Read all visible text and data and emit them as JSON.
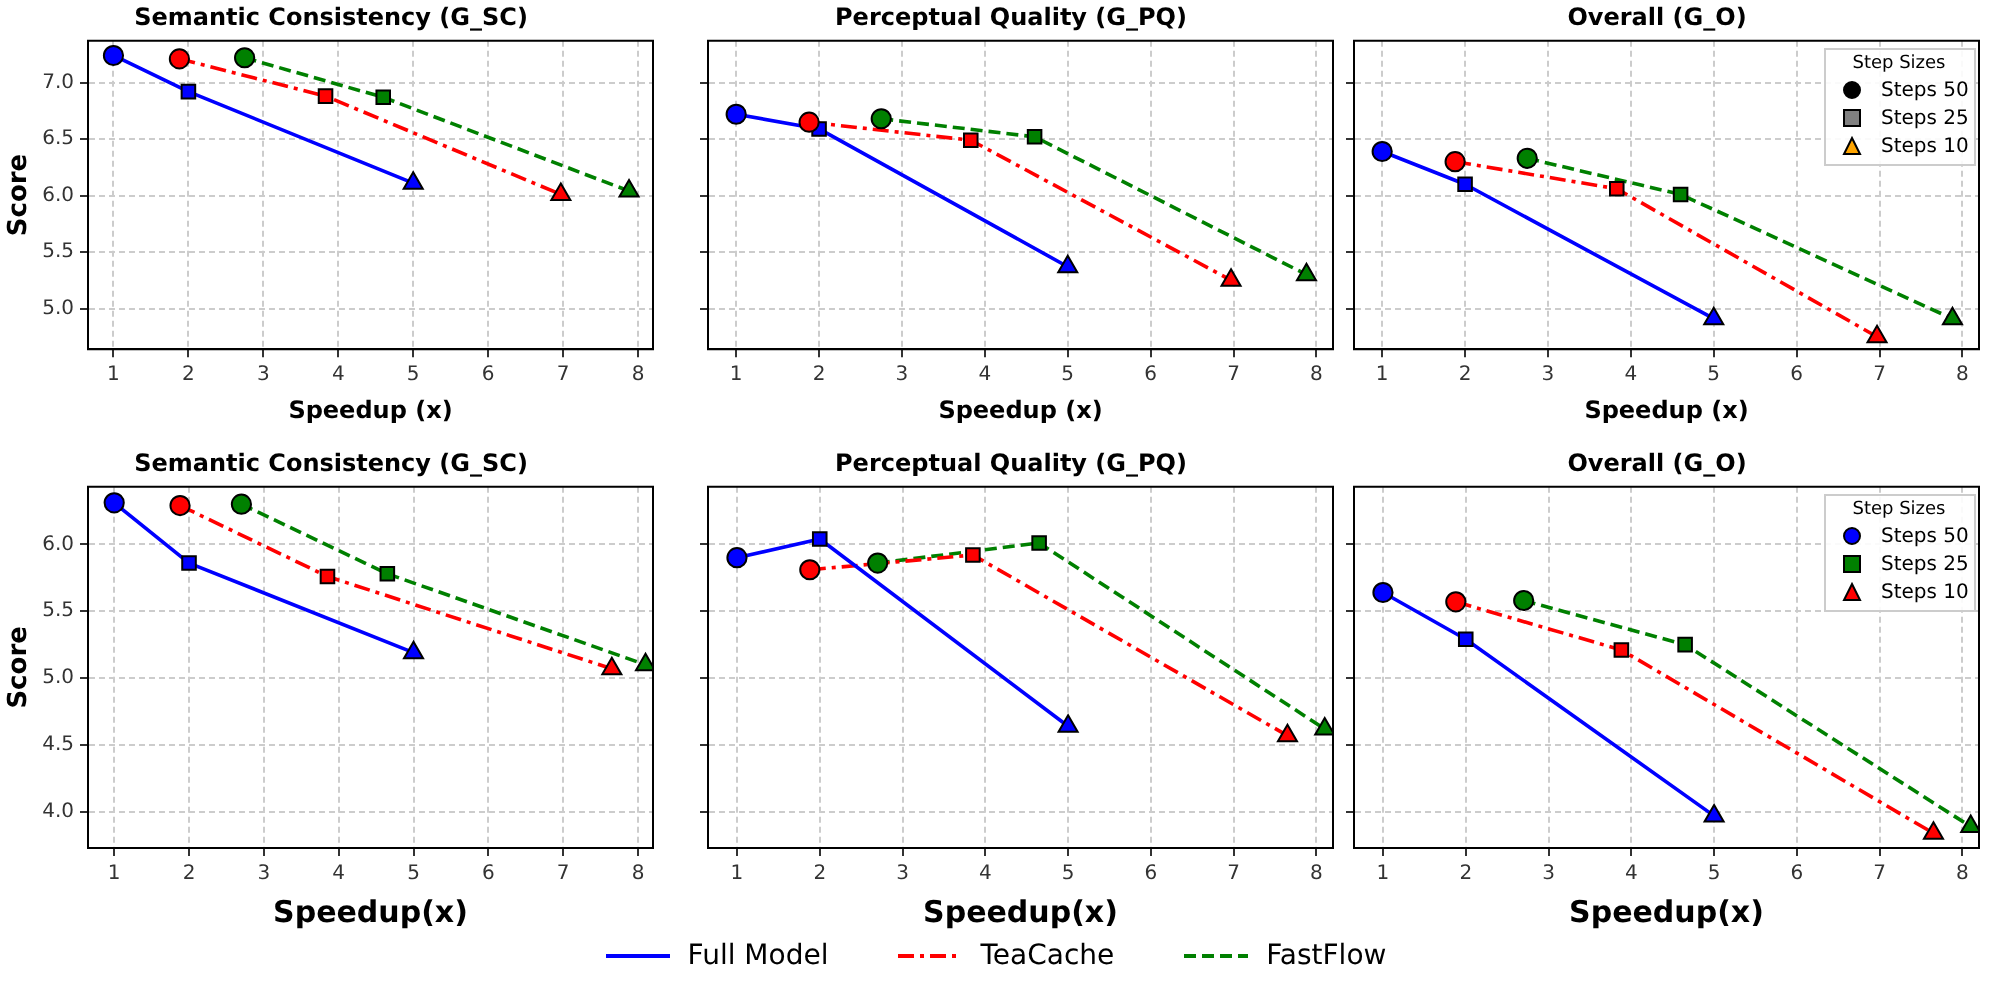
{
  "chart_data": [
    {
      "type": "line",
      "title": "Semantic Consistency (G_SC)",
      "xlabel": "Speedup (x)",
      "ylabel": "Score",
      "xlim": [
        0.66,
        8.2
      ],
      "ylim": [
        4.64,
        7.37
      ],
      "xticks": [
        1,
        2,
        3,
        4,
        5,
        6,
        7,
        8
      ],
      "yticks": [
        {
          "value": 5,
          "label": "5.0"
        },
        5.5,
        {
          "value": 6,
          "label": "6.0"
        },
        6.5,
        {
          "value": 7,
          "label": "7.0"
        }
      ],
      "grid": true,
      "legend": "bottom",
      "series": [
        {
          "name": "Full Model",
          "color": "#0000ff",
          "line_style": "solid",
          "marker": "none",
          "x": [
            1,
            2,
            5
          ],
          "values": [
            7.24,
            6.92,
            6.11
          ]
        },
        {
          "name": "TeaCache",
          "color": "#ff0000",
          "line_style": "dashdot",
          "marker": "none",
          "x": [
            1.88,
            3.83,
            6.97
          ],
          "values": [
            7.21,
            6.88,
            6.01
          ]
        },
        {
          "name": "FastFlow",
          "color": "#008000",
          "line_style": "dashed",
          "marker": "none",
          "x": [
            2.75,
            4.6,
            7.88
          ],
          "values": [
            7.22,
            6.87,
            6.04
          ]
        },
        {
          "type": "scatter",
          "color": "#000000",
          "marker": "circle",
          "x": [
            1,
            1.88,
            2.75
          ],
          "values": [
            7.24,
            7.21,
            7.22
          ],
          "colors": [
            "#0000ff",
            "#ff0000",
            "#008000"
          ]
        },
        {
          "type": "scatter",
          "color": "#808080",
          "marker": "square",
          "x": [
            2,
            3.83,
            4.6
          ],
          "values": [
            6.92,
            6.88,
            6.87
          ],
          "colors": [
            "#0000ff",
            "#ff0000",
            "#008000"
          ]
        },
        {
          "type": "scatter",
          "color": "#ffa500",
          "marker": "triangle",
          "x": [
            5,
            6.97,
            7.88
          ],
          "values": [
            6.11,
            6.01,
            6.04
          ],
          "colors": [
            "#0000ff",
            "#ff0000",
            "#008000"
          ]
        }
      ]
    },
    {
      "type": "line",
      "title": "Perceptual Quality (G_PQ)",
      "xlabel": "Speedup (x)",
      "xlim": [
        0.66,
        8.2
      ],
      "ylim": [
        4.64,
        7.37
      ],
      "xticks": [
        1,
        2,
        3,
        4,
        5,
        6,
        7,
        8
      ],
      "yticks": [
        5,
        5.5,
        6,
        6.5,
        7
      ],
      "grid": true,
      "tick_labels": "x",
      "series": [
        {
          "color": "#0000ff",
          "line_style": "solid",
          "marker": "none",
          "x": [
            1,
            2,
            5
          ],
          "values": [
            6.72,
            6.59,
            5.37
          ]
        },
        {
          "color": "#ff0000",
          "line_style": "dashdot",
          "marker": "none",
          "x": [
            1.88,
            3.83,
            6.97
          ],
          "values": [
            6.65,
            6.49,
            5.25
          ]
        },
        {
          "color": "#008000",
          "line_style": "dashed",
          "marker": "none",
          "x": [
            2.75,
            4.6,
            7.88
          ],
          "values": [
            6.68,
            6.52,
            5.3
          ]
        },
        {
          "type": "scatter",
          "color": "#000000",
          "marker": "circle",
          "x": [
            1,
            1.88,
            2.75
          ],
          "values": [
            6.72,
            6.65,
            6.68
          ],
          "colors": [
            "#0000ff",
            "#ff0000",
            "#008000"
          ]
        },
        {
          "type": "scatter",
          "color": "#808080",
          "marker": "square",
          "x": [
            2,
            3.83,
            4.6
          ],
          "values": [
            6.59,
            6.49,
            6.52
          ],
          "colors": [
            "#0000ff",
            "#ff0000",
            "#008000"
          ]
        },
        {
          "type": "scatter",
          "color": "#ffa500",
          "marker": "triangle",
          "x": [
            5,
            6.97,
            7.88
          ],
          "values": [
            5.37,
            5.25,
            5.3
          ],
          "colors": [
            "#0000ff",
            "#ff0000",
            "#008000"
          ]
        }
      ]
    },
    {
      "type": "line",
      "title": "Overall (G_O)",
      "xlabel": "Speedup (x)",
      "xlim": [
        0.66,
        8.2
      ],
      "ylim": [
        4.64,
        7.37
      ],
      "xticks": [
        1,
        2,
        3,
        4,
        5,
        6,
        7,
        8
      ],
      "yticks": [
        5,
        5.5,
        6,
        6.5,
        7
      ],
      "grid": true,
      "tick_labels": "x",
      "legend": "top right",
      "legend_title": "Step Sizes",
      "annotations": [
        "Steps 50",
        "Steps 25",
        "Steps 10"
      ],
      "series": [
        {
          "color": "#0000ff",
          "line_style": "solid",
          "marker": "none",
          "x": [
            1,
            2,
            5
          ],
          "values": [
            6.39,
            6.1,
            4.91
          ]
        },
        {
          "color": "#ff0000",
          "line_style": "dashdot",
          "marker": "none",
          "x": [
            1.88,
            3.83,
            6.97
          ],
          "values": [
            6.3,
            6.06,
            4.75
          ]
        },
        {
          "color": "#008000",
          "line_style": "dashed",
          "marker": "none",
          "x": [
            2.75,
            4.6,
            7.88
          ],
          "values": [
            6.33,
            6.01,
            4.91
          ]
        },
        {
          "type": "scatter",
          "color": "#000000",
          "marker": "circle",
          "x": [
            1,
            1.88,
            2.75
          ],
          "values": [
            6.39,
            6.3,
            6.33
          ],
          "colors": [
            "#0000ff",
            "#ff0000",
            "#008000"
          ]
        },
        {
          "type": "scatter",
          "color": "#808080",
          "marker": "square",
          "x": [
            2,
            3.83,
            4.6
          ],
          "values": [
            6.1,
            6.06,
            6.01
          ],
          "colors": [
            "#0000ff",
            "#ff0000",
            "#008000"
          ]
        },
        {
          "type": "scatter",
          "color": "#ffa500",
          "marker": "triangle",
          "x": [
            5,
            6.97,
            7.88
          ],
          "values": [
            4.91,
            4.75,
            4.91
          ],
          "colors": [
            "#0000ff",
            "#ff0000",
            "#008000"
          ]
        }
      ]
    },
    {
      "type": "line",
      "title": "Semantic Consistency (G_SC)",
      "xlabel": "Speedup(x)",
      "ylabel": "Score",
      "xlim": [
        0.65,
        8.2
      ],
      "ylim": [
        3.73,
        6.43
      ],
      "xticks": [
        1,
        2,
        3,
        4,
        5,
        6,
        7,
        8
      ],
      "yticks": [
        {
          "value": 4,
          "label": "4.0"
        },
        4.5,
        {
          "value": 5,
          "label": "5.0"
        },
        5.5,
        {
          "value": 6,
          "label": "6.0"
        }
      ],
      "grid": true,
      "series": [
        {
          "color": "#0000ff",
          "line_style": "solid",
          "marker": "none",
          "x": [
            1,
            2,
            5
          ],
          "values": [
            6.31,
            5.86,
            5.19
          ]
        },
        {
          "color": "#ff0000",
          "line_style": "dashdot",
          "marker": "none",
          "x": [
            1.88,
            3.85,
            7.65
          ],
          "values": [
            6.29,
            5.76,
            5.07
          ]
        },
        {
          "color": "#008000",
          "line_style": "dashed",
          "marker": "none",
          "x": [
            2.7,
            4.65,
            8.1
          ],
          "values": [
            6.3,
            5.78,
            5.1
          ]
        },
        {
          "type": "scatter",
          "color": "#0000ff",
          "marker": "circle",
          "x": [
            1,
            1.88,
            2.7
          ],
          "values": [
            6.31,
            6.29,
            6.3
          ],
          "colors": [
            "#0000ff",
            "#ff0000",
            "#008000"
          ]
        },
        {
          "type": "scatter",
          "color": "#008000",
          "marker": "square",
          "x": [
            2,
            3.85,
            4.65
          ],
          "values": [
            5.86,
            5.76,
            5.78
          ],
          "colors": [
            "#0000ff",
            "#ff0000",
            "#008000"
          ]
        },
        {
          "type": "scatter",
          "color": "#ff0000",
          "marker": "triangle",
          "x": [
            5,
            7.65,
            8.1
          ],
          "values": [
            5.19,
            5.07,
            5.1
          ],
          "colors": [
            "#0000ff",
            "#ff0000",
            "#008000"
          ]
        }
      ]
    },
    {
      "type": "line",
      "title": "Perceptual Quality (G_PQ)",
      "xlabel": "Speedup(x)",
      "xlim": [
        0.65,
        8.2
      ],
      "ylim": [
        3.73,
        6.43
      ],
      "xticks": [
        1,
        2,
        3,
        4,
        5,
        6,
        7,
        8
      ],
      "yticks": [
        4,
        4.5,
        5,
        5.5,
        6
      ],
      "grid": true,
      "tick_labels": "x",
      "series": [
        {
          "color": "#0000ff",
          "line_style": "solid",
          "marker": "none",
          "x": [
            1,
            2,
            5
          ],
          "values": [
            5.9,
            6.04,
            4.64
          ]
        },
        {
          "color": "#ff0000",
          "line_style": "dashdot",
          "marker": "none",
          "x": [
            1.88,
            3.85,
            7.65
          ],
          "values": [
            5.81,
            5.92,
            4.57
          ]
        },
        {
          "color": "#008000",
          "line_style": "dashed",
          "marker": "none",
          "x": [
            2.7,
            4.65,
            8.1
          ],
          "values": [
            5.86,
            6.01,
            4.62
          ]
        },
        {
          "type": "scatter",
          "color": "#0000ff",
          "marker": "circle",
          "x": [
            1,
            1.88,
            2.7
          ],
          "values": [
            5.9,
            5.81,
            5.86
          ],
          "colors": [
            "#0000ff",
            "#ff0000",
            "#008000"
          ]
        },
        {
          "type": "scatter",
          "color": "#008000",
          "marker": "square",
          "x": [
            2,
            3.85,
            4.65
          ],
          "values": [
            6.04,
            5.92,
            6.01
          ],
          "colors": [
            "#0000ff",
            "#ff0000",
            "#008000"
          ]
        },
        {
          "type": "scatter",
          "color": "#ff0000",
          "marker": "triangle",
          "x": [
            5,
            7.65,
            8.1
          ],
          "values": [
            4.64,
            4.57,
            4.62
          ],
          "colors": [
            "#0000ff",
            "#ff0000",
            "#008000"
          ]
        }
      ]
    },
    {
      "type": "line",
      "title": "Overall (G_O)",
      "xlabel": "Speedup(x)",
      "xlim": [
        0.65,
        8.2
      ],
      "ylim": [
        3.73,
        6.43
      ],
      "xticks": [
        1,
        2,
        3,
        4,
        5,
        6,
        7,
        8
      ],
      "yticks": [
        4,
        4.5,
        5,
        5.5,
        6
      ],
      "grid": true,
      "tick_labels": "x",
      "legend": "top right",
      "legend_title": "Step Sizes",
      "series": [
        {
          "color": "#0000ff",
          "line_style": "solid",
          "marker": "none",
          "x": [
            1,
            2,
            5
          ],
          "values": [
            5.64,
            5.29,
            3.97
          ]
        },
        {
          "color": "#ff0000",
          "line_style": "dashdot",
          "marker": "none",
          "x": [
            1.88,
            3.88,
            7.65
          ],
          "values": [
            5.57,
            5.21,
            3.84
          ]
        },
        {
          "color": "#008000",
          "line_style": "dashed",
          "marker": "none",
          "x": [
            2.7,
            4.65,
            8.1
          ],
          "values": [
            5.58,
            5.25,
            3.89
          ]
        },
        {
          "name": "Steps 50",
          "type": "scatter",
          "color": "#0000ff",
          "marker": "circle",
          "x": [
            1,
            1.88,
            2.7
          ],
          "values": [
            5.64,
            5.57,
            5.58
          ],
          "colors": [
            "#0000ff",
            "#ff0000",
            "#008000"
          ]
        },
        {
          "name": "Steps 25",
          "type": "scatter",
          "color": "#008000",
          "marker": "square",
          "x": [
            2,
            3.88,
            4.65
          ],
          "values": [
            5.29,
            5.21,
            5.25
          ],
          "colors": [
            "#0000ff",
            "#ff0000",
            "#008000"
          ]
        },
        {
          "name": "Steps 10",
          "type": "scatter",
          "color": "#ff0000",
          "marker": "triangle",
          "x": [
            5,
            7.65,
            8.1
          ],
          "values": [
            3.97,
            3.84,
            3.89
          ],
          "colors": [
            "#0000ff",
            "#ff0000",
            "#008000"
          ]
        }
      ]
    }
  ]
}
